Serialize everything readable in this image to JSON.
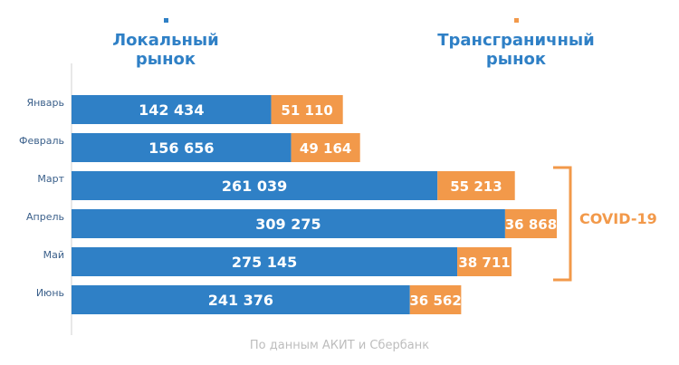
{
  "chart_data": {
    "type": "bar",
    "orientation": "horizontal",
    "stacked": true,
    "categories": [
      "Январь",
      "Февраль",
      "Март",
      "Апрель",
      "Май",
      "Июнь"
    ],
    "series": [
      {
        "name": "Локальный рынок",
        "values": [
          142434,
          156656,
          261039,
          309275,
          275145,
          241376
        ],
        "color": "#2F80C6"
      },
      {
        "name": "Трансграничный рынок",
        "values": [
          51110,
          49164,
          55213,
          36868,
          38711,
          36562
        ],
        "color": "#F2994A"
      }
    ],
    "data_labels": {
      "local": [
        "142 434",
        "156 656",
        "261 039",
        "309 275",
        "275 145",
        "241 376"
      ],
      "cross": [
        "51 110",
        "49 164",
        "55 213",
        "36 868",
        "38 711",
        "36 562"
      ]
    },
    "xlim": [
      0,
      346143
    ],
    "annotation": {
      "text": "COVID-19",
      "categories": [
        "Март",
        "Апрель",
        "Май"
      ],
      "color": "#F2994A"
    }
  },
  "legend": {
    "local_line1": "Локальный",
    "local_line2": "рынок",
    "cross_line1": "Трансграничный",
    "cross_line2": "рынок"
  },
  "source": "По данным АКИТ и Сбербанк"
}
